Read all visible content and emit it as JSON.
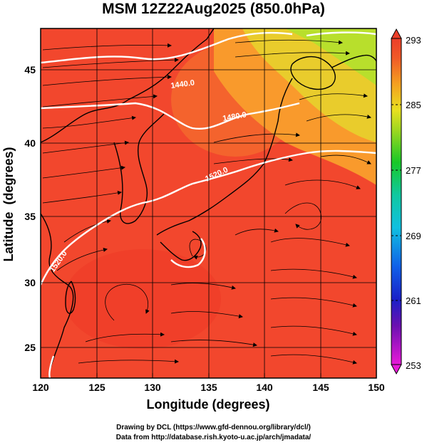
{
  "title": "MSM 12Z22Aug2025 (850.0hPa)",
  "axes": {
    "xlabel": "Longitude (degrees)",
    "ylabel": "Latitude  (degrees)",
    "xlim": [
      120,
      150
    ],
    "ylim": [
      22.4,
      47.6
    ],
    "xticks": [
      "120",
      "125",
      "130",
      "135",
      "140",
      "145",
      "150"
    ],
    "yticks": [
      "25",
      "30",
      "35",
      "40",
      "45"
    ]
  },
  "colorbar": {
    "range": [
      253,
      293
    ],
    "ticks": [
      "293",
      "285",
      "277",
      "269",
      "261",
      "253"
    ]
  },
  "contours": [
    {
      "label": "1440.0"
    },
    {
      "label": "1480.0"
    },
    {
      "label": "1520.0"
    },
    {
      "label": "1520.0"
    }
  ],
  "footer": {
    "line1": "Drawing by DCL (https://www.gfd-dennou.org/library/dcl/)",
    "line2": "Data from http://database.rish.kyoto-u.ac.jp/arch/jmadata/"
  },
  "colors": {
    "warm": "#f2472d",
    "hot": "#ee3a26",
    "orange": "#f77d2c",
    "yellow": "#e6d32d",
    "green": "#a8df2a",
    "contour": "#ffffff",
    "coast": "#000000",
    "grid": "#000000"
  }
}
